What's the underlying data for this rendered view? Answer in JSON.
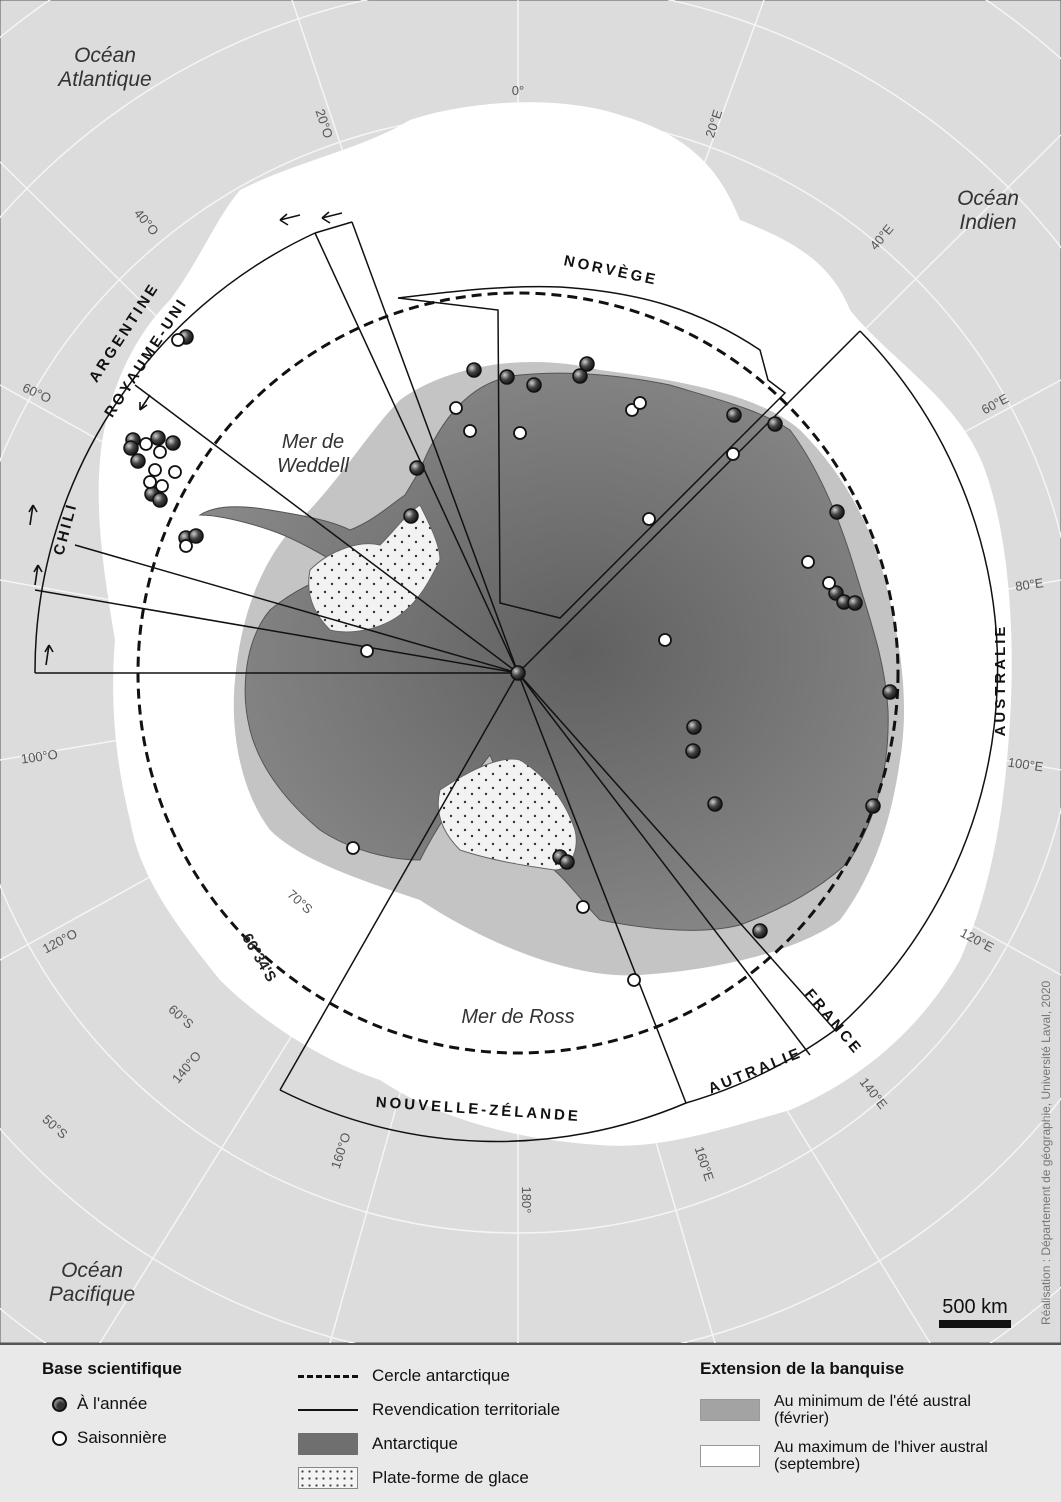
{
  "oceans": {
    "atlantic": [
      "Océan",
      "Atlantique"
    ],
    "indian": [
      "Océan",
      "Indien"
    ],
    "pacific": [
      "Océan",
      "Pacifique"
    ]
  },
  "seas": {
    "weddell": [
      "Mer de",
      "Weddell"
    ],
    "ross": "Mer de Ross"
  },
  "graticule": {
    "lon_0": "0°",
    "lon_20w": "20°O",
    "lon_20e": "20°E",
    "lon_40w": "40°O",
    "lon_40e": "40°E",
    "lon_60w": "60°O",
    "lon_60e": "60°E",
    "lon_80e": "80°E",
    "lon_100w": "100°O",
    "lon_100e": "100°E",
    "lon_120w": "120°O",
    "lon_120e": "120°E",
    "lon_140w": "140°O",
    "lon_140e": "140°E",
    "lon_160w": "160°O",
    "lon_160e": "160°E",
    "lon_180": "180°",
    "lat_70s": "70°S",
    "lat_60s": "60°S",
    "lat_50s": "50°S",
    "antarctic_circle": "66°34'S"
  },
  "claims": {
    "norway": "NORVÈGE",
    "argentina": "ARGENTINE",
    "uk": "ROYAUME-UNI",
    "chile": "CHILI",
    "australia_east": "AUSTRALIE",
    "france": "FRANCE",
    "australia_south": "AUTRALIE",
    "new_zealand": "NOUVELLE-ZÉLANDE"
  },
  "scale_bar": "500 km",
  "credit": "Réalisation : Département de géographie, Université Laval, 2020",
  "legend": {
    "base_title": "Base scientifique",
    "year_round": "À l'année",
    "seasonal": "Saisonnière",
    "antarctic_circle": "Cercle antarctique",
    "territorial_claim": "Revendication territoriale",
    "antarctica": "Antarctique",
    "ice_shelf": "Plate-forme de glace",
    "sea_ice_title": "Extension de la banquise",
    "summer_min": [
      "Au minimum de l'été austral",
      "(février)"
    ],
    "winter_max": [
      "Au maximum de l'hiver austral",
      "(septembre)"
    ]
  },
  "colors": {
    "ocean": "#dcdcdc",
    "winter_ice": "#ffffff",
    "summer_ice": "#b4b4b4",
    "continent": "#777777",
    "ice_shelf": "#f2f2f2",
    "lines": "#111111"
  },
  "bases": {
    "year_round_count": 34,
    "seasonal_count": 24
  }
}
